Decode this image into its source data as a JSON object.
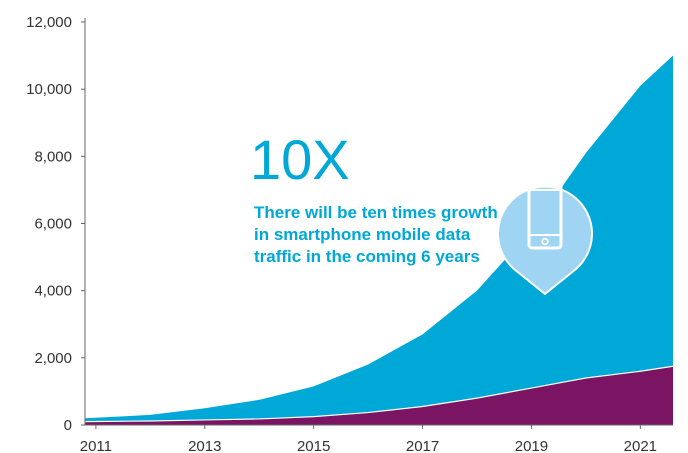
{
  "chart_data": {
    "type": "area",
    "stacked": false,
    "x": [
      2010.8,
      2012,
      2013,
      2014,
      2015,
      2016,
      2017,
      2018,
      2019,
      2020,
      2021,
      2021.6
    ],
    "series": [
      {
        "key": "total",
        "values": [
          200,
          300,
          500,
          750,
          1150,
          1800,
          2700,
          4000,
          5800,
          8100,
          10100,
          11000
        ],
        "color": "#00a8d8"
      },
      {
        "key": "lower",
        "values": [
          100,
          120,
          150,
          180,
          250,
          370,
          550,
          800,
          1100,
          1400,
          1600,
          1750
        ],
        "color": "#7b1463"
      }
    ],
    "xlim": [
      2010.8,
      2021.6
    ],
    "ylim": [
      0,
      12000
    ],
    "y_ticks": [
      0,
      2000,
      4000,
      6000,
      8000,
      10000,
      12000
    ],
    "y_tick_labels": [
      "0",
      "2,000",
      "4,000",
      "6,000",
      "8,000",
      "10,000",
      "12,000"
    ],
    "x_ticks": [
      2011,
      2013,
      2015,
      2017,
      2019,
      2021
    ],
    "x_tick_labels": [
      "2011",
      "2013",
      "2015",
      "2017",
      "2019",
      "2021"
    ],
    "grid": false,
    "annotation": {
      "headline": "10X",
      "text": "There will be ten times growth in smartphone mobile data traffic in the coming 6 years",
      "color": "#00a8d8",
      "icon": "smartphone-pin-icon",
      "icon_color": "#9fd4f2"
    }
  }
}
